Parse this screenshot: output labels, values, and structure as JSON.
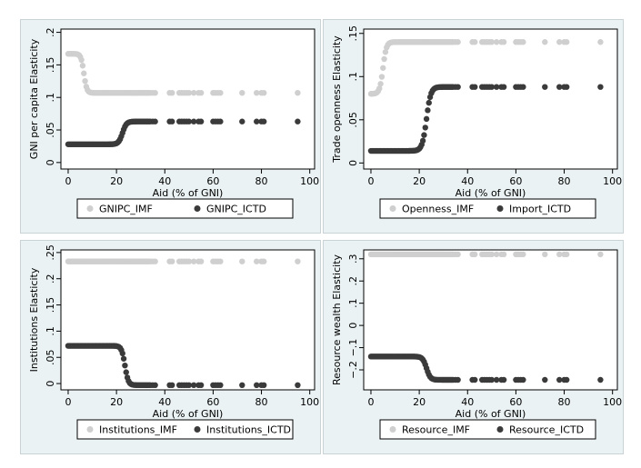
{
  "colors": {
    "imf": "#cfcfcf",
    "ictd": "#3a3a3a",
    "background": "#eaf2f3",
    "plot_bg": "#ffffff"
  },
  "chart_data": [
    {
      "type": "scatter",
      "xlabel": "Aid (% of GNI)",
      "ylabel": "GNI per capita Elasticity",
      "xlim": [
        -3,
        102
      ],
      "ylim": [
        -0.01,
        0.205
      ],
      "xticks": [
        0,
        20,
        40,
        60,
        80,
        100
      ],
      "yticks": [
        0,
        0.05,
        0.1,
        0.15,
        0.2
      ],
      "ytick_labels": [
        "0",
        ".05",
        ".1",
        ".15",
        ".2"
      ],
      "legend_position": "bottom",
      "series": [
        {
          "name": "GNIPC_IMF",
          "color": "#cfcfcf",
          "level_low": 0.167,
          "level_high": 0.107,
          "transition": 6.5,
          "sharpness": 0.6
        },
        {
          "name": "GNIPC_ICTD",
          "color": "#3a3a3a",
          "level_low": 0.028,
          "level_high": 0.063,
          "transition": 22.5,
          "sharpness": 0.8
        }
      ]
    },
    {
      "type": "scatter",
      "xlabel": "Aid (% of GNI)",
      "ylabel": "Trade openness Elasticity",
      "xlim": [
        -3,
        102
      ],
      "ylim": [
        -0.007,
        0.155
      ],
      "xticks": [
        0,
        20,
        40,
        60,
        80,
        100
      ],
      "yticks": [
        0,
        0.05,
        0.1,
        0.15
      ],
      "ytick_labels": [
        "0",
        ".05",
        ".1",
        ".15"
      ],
      "legend_position": "bottom",
      "series": [
        {
          "name": "Openness_IMF",
          "color": "#cfcfcf",
          "level_low": 0.08,
          "level_high": 0.14,
          "transition": 5,
          "sharpness": 0.7
        },
        {
          "name": "Import_ICTD",
          "color": "#3a3a3a",
          "level_low": 0.014,
          "level_high": 0.088,
          "transition": 23,
          "sharpness": 0.9
        }
      ]
    },
    {
      "type": "scatter",
      "xlabel": "Aid (% of GNI)",
      "ylabel": "Institutions Elasticity",
      "xlim": [
        -3,
        102
      ],
      "ylim": [
        -0.012,
        0.255
      ],
      "xticks": [
        0,
        20,
        40,
        60,
        80,
        100
      ],
      "yticks": [
        0,
        0.05,
        0.1,
        0.15,
        0.2,
        0.25
      ],
      "ytick_labels": [
        "0",
        ".05",
        ".1",
        ".15",
        ".2",
        ".25"
      ],
      "legend_position": "bottom",
      "series": [
        {
          "name": "Institutions_IMF",
          "color": "#cfcfcf",
          "level_low": 0.233,
          "level_high": 0.233,
          "transition": 50,
          "sharpness": 1
        },
        {
          "name": "Institutions_ICTD",
          "color": "#3a3a3a",
          "level_low": 0.072,
          "level_high": -0.003,
          "transition": 23.5,
          "sharpness": 0.7
        }
      ]
    },
    {
      "type": "scatter",
      "xlabel": "Aid (% of GNI)",
      "ylabel": "Resource wealth Elasticity",
      "xlim": [
        -3,
        102
      ],
      "ylim": [
        -0.29,
        0.34
      ],
      "xticks": [
        0,
        20,
        40,
        60,
        80,
        100
      ],
      "yticks": [
        -0.2,
        -0.1,
        0,
        0.1,
        0.2,
        0.3
      ],
      "ytick_labels": [
        "−.2",
        "−.1",
        "0",
        ".1",
        ".2",
        ".3"
      ],
      "legend_position": "bottom",
      "series": [
        {
          "name": "Resource_IMF",
          "color": "#cfcfcf",
          "level_low": 0.32,
          "level_high": 0.32,
          "transition": 50,
          "sharpness": 1
        },
        {
          "name": "Resource_ICTD",
          "color": "#3a3a3a",
          "level_low": -0.14,
          "level_high": -0.245,
          "transition": 23,
          "sharpness": 0.8
        }
      ]
    }
  ],
  "x_points": [
    0,
    0.5,
    1,
    1.5,
    2,
    2.5,
    3,
    3.5,
    4,
    4.5,
    5,
    5.5,
    6,
    6.5,
    7,
    7.5,
    8,
    8.5,
    9,
    9.5,
    10,
    10.5,
    11,
    11.5,
    12,
    12.5,
    13,
    13.5,
    14,
    14.5,
    15,
    15.5,
    16,
    16.5,
    17,
    17.5,
    18,
    18.5,
    19,
    19.5,
    20,
    20.5,
    21,
    21.5,
    22,
    22.5,
    23,
    23.5,
    24,
    24.5,
    25,
    25.5,
    26,
    26.5,
    27,
    27.5,
    28,
    28.5,
    29,
    29.5,
    30,
    30.5,
    31,
    31.5,
    32,
    32.5,
    33,
    33.5,
    34,
    35,
    36,
    42,
    43,
    46,
    47,
    48,
    49,
    50,
    52,
    54,
    55,
    60,
    61,
    62,
    63,
    72,
    78,
    80,
    81,
    95
  ]
}
